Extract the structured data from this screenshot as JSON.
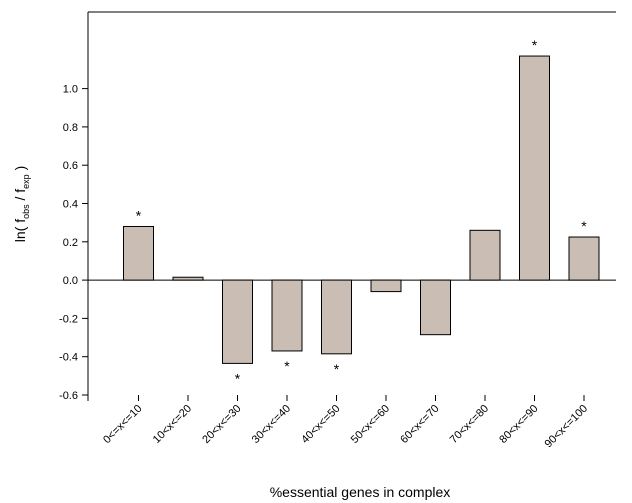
{
  "chart_data": {
    "type": "bar",
    "categories": [
      "0<=x<=10",
      "10<x<=20",
      "20<x<=30",
      "30<x<=40",
      "40<x<=50",
      "50<x<=60",
      "60<x<=70",
      "70<x<=80",
      "80<x<=90",
      "90<x<=100"
    ],
    "values": [
      0.28,
      0.015,
      -0.435,
      -0.37,
      -0.385,
      -0.06,
      -0.285,
      0.26,
      1.17,
      0.225
    ],
    "significant": [
      true,
      false,
      true,
      true,
      true,
      false,
      false,
      false,
      true,
      true
    ],
    "annotation_symbol": "*",
    "title": "",
    "xlabel": "%essential genes in complex",
    "ylabel": {
      "prefix": "ln( f",
      "sub1": "obs",
      "mid": " / f",
      "sub2": "exp",
      "suffix": " )"
    },
    "ylim": [
      -0.6,
      1.4
    ],
    "yticks": [
      -0.6,
      -0.4,
      -0.2,
      0.0,
      0.2,
      0.4,
      0.6,
      0.8,
      1.0
    ],
    "ytick_labels": [
      "-0.6",
      "-0.4",
      "-0.2",
      "0.0",
      "0.2",
      "0.4",
      "0.6",
      "0.8",
      "1.0"
    ],
    "bar_color": "#c9bdb4",
    "grid": false,
    "legend": "none"
  }
}
